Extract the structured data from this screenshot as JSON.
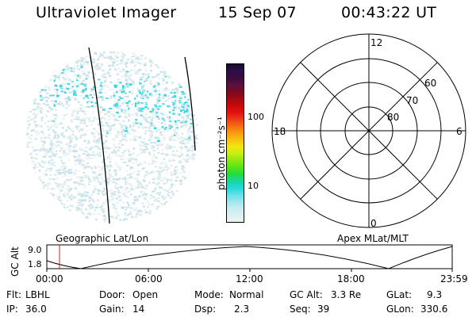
{
  "header": {
    "title": "Ultraviolet Imager",
    "date": "15 Sep 07",
    "time": "00:43:22 UT"
  },
  "colorbar": {
    "unit_label": "photon cm⁻²s⁻¹",
    "ticks": [
      "100",
      "10"
    ],
    "colors": [
      "#1a0a2e",
      "#2a1048",
      "#3b0a3c",
      "#5a1040",
      "#7a0a20",
      "#a00a14",
      "#c80a0a",
      "#e01010",
      "#ee3a1a",
      "#f46a12",
      "#f89a10",
      "#f8c010",
      "#f2e610",
      "#c8ee10",
      "#90e810",
      "#58e41a",
      "#24dc3a",
      "#18d6a0",
      "#20d8d8",
      "#62e0e6",
      "#9ee6ec",
      "#c6ecf0",
      "#ddf0f2",
      "#eaf4f6"
    ]
  },
  "polar_plot": {
    "mlt_labels": {
      "top": "12",
      "bottom": "0",
      "left": "18",
      "right": "6"
    },
    "lat_labels": [
      "60",
      "70",
      "80"
    ]
  },
  "image_panel": {
    "footer_left": "Geographic Lat/Lon",
    "footer_right": "Apex MLat/MLT"
  },
  "orbit_plot": {
    "ylabel": "GC Alt",
    "yticks": [
      "9.0",
      "1.8"
    ],
    "xticks": [
      "00:00",
      "06:00",
      "12:00",
      "18:00",
      "23:59"
    ],
    "marker_color": "#cc2222"
  },
  "status": {
    "row1": [
      {
        "key": "Flt:",
        "value": "LBHL"
      },
      {
        "key": "Door:",
        "value": "Open"
      },
      {
        "key": "Mode:",
        "value": "Normal"
      },
      {
        "key": "GC Alt:",
        "value": "3.3 Re"
      },
      {
        "key": "GLat:",
        "value": "9.3"
      }
    ],
    "row2": [
      {
        "key": "IP:",
        "value": "36.0"
      },
      {
        "key": "Gain:",
        "value": "14"
      },
      {
        "key": "Dsp:",
        "value": "2.3"
      },
      {
        "key": "Seq:",
        "value": "39"
      },
      {
        "key": "GLon:",
        "value": "330.6"
      }
    ]
  }
}
